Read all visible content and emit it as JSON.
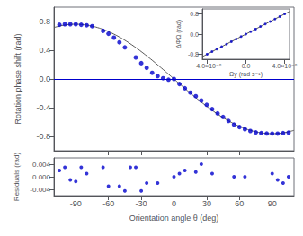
{
  "chart_data": [
    {
      "type": "scatter",
      "ylabel": "Rotation phase shift (rad)",
      "xlim": [
        -110,
        110
      ],
      "ylim": [
        -1.0,
        1.0
      ],
      "xticks": [
        -90,
        -60,
        -30,
        0,
        30,
        60,
        90
      ],
      "yticks": [
        -0.8,
        -0.4,
        {
          "value": 0.0,
          "label": "0.0"
        },
        0.4,
        0.8
      ],
      "tick_labels": "y",
      "grid": false,
      "series": [
        {
          "type": "line",
          "color": "#555555",
          "x": [
            -110,
            -105,
            -100,
            -95,
            -90,
            -85,
            -80,
            -75,
            -70,
            -65,
            -60,
            -55,
            -50,
            -45,
            -40,
            -35,
            -30,
            -25,
            -20,
            -15,
            -10,
            -5,
            0,
            5,
            10,
            15,
            20,
            25,
            30,
            35,
            40,
            45,
            50,
            55,
            60,
            65,
            70,
            75,
            80,
            85,
            90,
            95,
            100,
            105,
            110
          ],
          "values": [
            0.716,
            0.736,
            0.7504,
            0.7591,
            0.762,
            0.7591,
            0.7504,
            0.736,
            0.716,
            0.6906,
            0.6599,
            0.6242,
            0.5837,
            0.5388,
            0.4898,
            0.4371,
            0.381,
            0.322,
            0.2606,
            0.1972,
            0.1323,
            0.0664,
            0,
            -0.0664,
            -0.1323,
            -0.1972,
            -0.2606,
            -0.322,
            -0.381,
            -0.4371,
            -0.4898,
            -0.5388,
            -0.5837,
            -0.6242,
            -0.6599,
            -0.6906,
            -0.716,
            -0.736,
            -0.7504,
            -0.7591,
            -0.762,
            -0.7591,
            -0.7504,
            -0.736,
            -0.716
          ]
        },
        {
          "type": "scatter",
          "color": "#0000CD",
          "x": [
            -105,
            -100,
            -95,
            -90,
            -85,
            -80,
            -75,
            -65,
            -60,
            -55,
            -50,
            -45,
            -35,
            -30,
            -25,
            -20,
            -15,
            -10,
            -5,
            0,
            5,
            10,
            15,
            20,
            25,
            30,
            35,
            40,
            45,
            50,
            55,
            60,
            65,
            70,
            75,
            80,
            85,
            90,
            95,
            100,
            105
          ],
          "values": [
            0.755,
            0.762,
            0.762,
            0.762,
            0.755,
            0.748,
            0.735,
            0.67,
            0.63,
            0.575,
            0.51,
            0.44,
            0.3,
            0.22,
            0.155,
            0.085,
            0.04,
            0.01,
            -0.01,
            0.0,
            -0.07,
            -0.13,
            -0.19,
            -0.24,
            -0.3,
            -0.36,
            -0.42,
            -0.48,
            -0.53,
            -0.585,
            -0.635,
            -0.67,
            -0.7,
            -0.725,
            -0.745,
            -0.755,
            -0.76,
            -0.762,
            -0.762,
            -0.755,
            -0.748
          ]
        }
      ]
    },
    {
      "type": "scatter",
      "xlabel": "Orientation angle θ (deg)",
      "ylabel": "Residuals (rad)",
      "xlim": [
        -110,
        110
      ],
      "ylim": [
        -0.006,
        0.006
      ],
      "xticks": [
        -90,
        -60,
        -30,
        0,
        30,
        60,
        90
      ],
      "yticks": [
        -0.004,
        {
          "value": 0.0,
          "label": "0.000"
        },
        0.004
      ],
      "grid": false,
      "series": [
        {
          "type": "scatter",
          "color": "#0000CD",
          "x": [
            -105,
            -100,
            -95,
            -90,
            -85,
            -80,
            -65,
            -60,
            -50,
            -45,
            -40,
            -35,
            -30,
            -25,
            -15,
            0,
            5,
            10,
            20,
            25,
            35,
            55,
            65,
            90,
            95,
            100,
            105
          ],
          "values": [
            0.002,
            0.003,
            -0.001,
            -0.0015,
            0.003,
            0.001,
            0.003,
            -0.003,
            -0.003,
            -0.0045,
            0.003,
            0.003,
            -0.0045,
            -0.002,
            -0.002,
            0.0,
            0.001,
            0.002,
            0.0015,
            0.004,
            0.001,
            0.0,
            0.0,
            0.001,
            -0.001,
            -0.002,
            0.0
          ]
        }
      ]
    },
    {
      "type": "scatter",
      "xlabel": "Ωy (rad s⁻¹)",
      "ylabel": "ΔΦΩ (rad)",
      "xlim": [
        -4.5e-05,
        4.5e-05
      ],
      "ylim": [
        -1.0,
        1.0
      ],
      "xticks": [
        {
          "value": -4e-05,
          "label": "−4.0×10⁻⁵"
        },
        {
          "value": 0.0,
          "label": "0.0"
        },
        {
          "value": 4e-05,
          "label": "4.0×10⁻⁵"
        }
      ],
      "yticks": [
        {
          "value": -0.8,
          "label": "-0.8"
        },
        {
          "value": 0.0,
          "label": "0.0"
        },
        {
          "value": 0.8,
          "label": "0.8"
        }
      ],
      "grid": false,
      "series": [
        {
          "type": "line",
          "color": "#555555",
          "x": [
            -4.5e-05,
            4.5e-05
          ],
          "values": [
            -0.9,
            0.9
          ]
        },
        {
          "type": "scatter",
          "color": "#0000CD",
          "x": [
            -4e-05,
            -3.5e-05,
            -3e-05,
            -2.5e-05,
            -2e-05,
            -1.5e-05,
            -1e-05,
            -5e-06,
            0,
            5e-06,
            1e-05,
            1.5e-05,
            2e-05,
            2.5e-05,
            3e-05,
            3.5e-05,
            4e-05
          ],
          "values": [
            -0.8,
            -0.7,
            -0.6,
            -0.5,
            -0.4,
            -0.3,
            -0.2,
            -0.1,
            0.0,
            0.1,
            0.2,
            0.3,
            0.4,
            0.5,
            0.6,
            0.7,
            0.8
          ]
        }
      ]
    }
  ]
}
